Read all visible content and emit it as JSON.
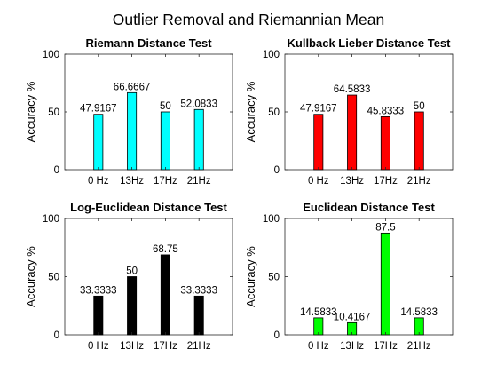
{
  "figure_title": "Outlier Removal and Riemannian Mean",
  "chart_data": [
    {
      "type": "bar",
      "title": "Riemann Distance Test",
      "ylabel": "Accuracy %",
      "xlabel": "",
      "categories": [
        "0 Hz",
        "13Hz",
        "17Hz",
        "21Hz"
      ],
      "values": [
        47.9167,
        66.6667,
        50,
        52.0833
      ],
      "value_labels": [
        "47.9167",
        "66.6667",
        "50",
        "52.0833"
      ],
      "ylim": [
        0,
        100
      ],
      "yticks": [
        0,
        50,
        100
      ],
      "bar_color": "#00ffff",
      "grid": false
    },
    {
      "type": "bar",
      "title": "Kullback Lieber Distance Test",
      "ylabel": "Accuracy %",
      "xlabel": "",
      "categories": [
        "0 Hz",
        "13Hz",
        "17Hz",
        "21Hz"
      ],
      "values": [
        47.9167,
        64.5833,
        45.8333,
        50
      ],
      "value_labels": [
        "47.9167",
        "64.5833",
        "45.8333",
        "50"
      ],
      "ylim": [
        0,
        100
      ],
      "yticks": [
        0,
        50,
        100
      ],
      "bar_color": "#ff0000",
      "grid": false
    },
    {
      "type": "bar",
      "title": "Log-Euclidean Distance Test",
      "ylabel": "Accuracy %",
      "xlabel": "",
      "categories": [
        "0 Hz",
        "13Hz",
        "17Hz",
        "21Hz"
      ],
      "values": [
        33.3333,
        50,
        68.75,
        33.3333
      ],
      "value_labels": [
        "33.3333",
        "50",
        "68.75",
        "33.3333"
      ],
      "ylim": [
        0,
        100
      ],
      "yticks": [
        0,
        50,
        100
      ],
      "bar_color": "#000000",
      "grid": false
    },
    {
      "type": "bar",
      "title": "Euclidean Distance Test",
      "ylabel": "Accuracy %",
      "xlabel": "",
      "categories": [
        "0 Hz",
        "13Hz",
        "17Hz",
        "21Hz"
      ],
      "values": [
        14.5833,
        10.4167,
        87.5,
        14.5833
      ],
      "value_labels": [
        "14.5833",
        "10.4167",
        "87.5",
        "14.5833"
      ],
      "ylim": [
        0,
        100
      ],
      "yticks": [
        0,
        50,
        100
      ],
      "bar_color": "#00ff00",
      "grid": false
    }
  ]
}
